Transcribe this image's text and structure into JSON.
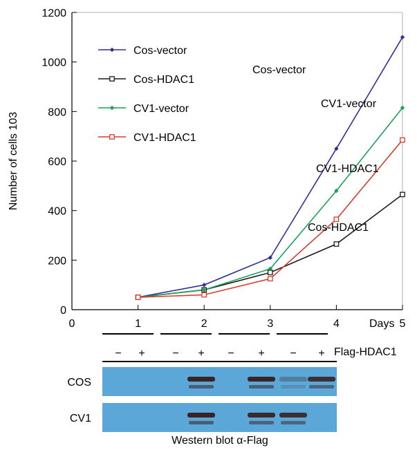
{
  "chart_data": {
    "type": "line",
    "ylabel": "Number of cells 103",
    "xlabel": "Days",
    "xlim": [
      0,
      5
    ],
    "ylim": [
      0,
      1200
    ],
    "x_ticks": [
      "0",
      "1",
      "2",
      "3",
      "4",
      "5"
    ],
    "y_ticks": [
      "0",
      "200",
      "400",
      "600",
      "800",
      "1000",
      "1200"
    ],
    "x": [
      1,
      2,
      3,
      4,
      5
    ],
    "series": [
      {
        "name": "Cos-vector",
        "color": "#2e3192",
        "marker": "diamond",
        "values": [
          50,
          100,
          210,
          650,
          1100
        ],
        "annotation": "Cos-vector"
      },
      {
        "name": "Cos-HDAC1",
        "color": "#1a1a1a",
        "marker": "square-open",
        "values": [
          50,
          80,
          150,
          265,
          465
        ],
        "annotation": "Cos-HDAC1"
      },
      {
        "name": "CV1-vector",
        "color": "#1aa05a",
        "marker": "diamond",
        "values": [
          50,
          80,
          165,
          480,
          815
        ],
        "annotation": "CV1-vector"
      },
      {
        "name": "CV1-HDAC1",
        "color": "#d93a2b",
        "marker": "square-open",
        "values": [
          50,
          60,
          125,
          365,
          685
        ],
        "annotation": "CV1-HDAC1"
      }
    ],
    "legend": {
      "placement": "top-left"
    },
    "grid": false
  },
  "blot": {
    "treatment_label": "Flag-HDAC1",
    "lane_signs": [
      "−",
      "+",
      "−",
      "+",
      "−",
      "+",
      "−",
      "+"
    ],
    "day_groups": [
      "1",
      "2",
      "3",
      "4"
    ],
    "rows": [
      {
        "label": "COS",
        "bands": [
          0,
          0,
          0,
          0.95,
          0,
          0.95,
          0.3,
          0.85
        ]
      },
      {
        "label": "CV1",
        "bands": [
          0,
          0,
          0,
          0.95,
          0,
          0.9,
          0.85,
          0
        ]
      }
    ],
    "caption": "Western blot α-Flag",
    "background_color": "#5ba8d8",
    "band_color": "#3a1a1a"
  }
}
